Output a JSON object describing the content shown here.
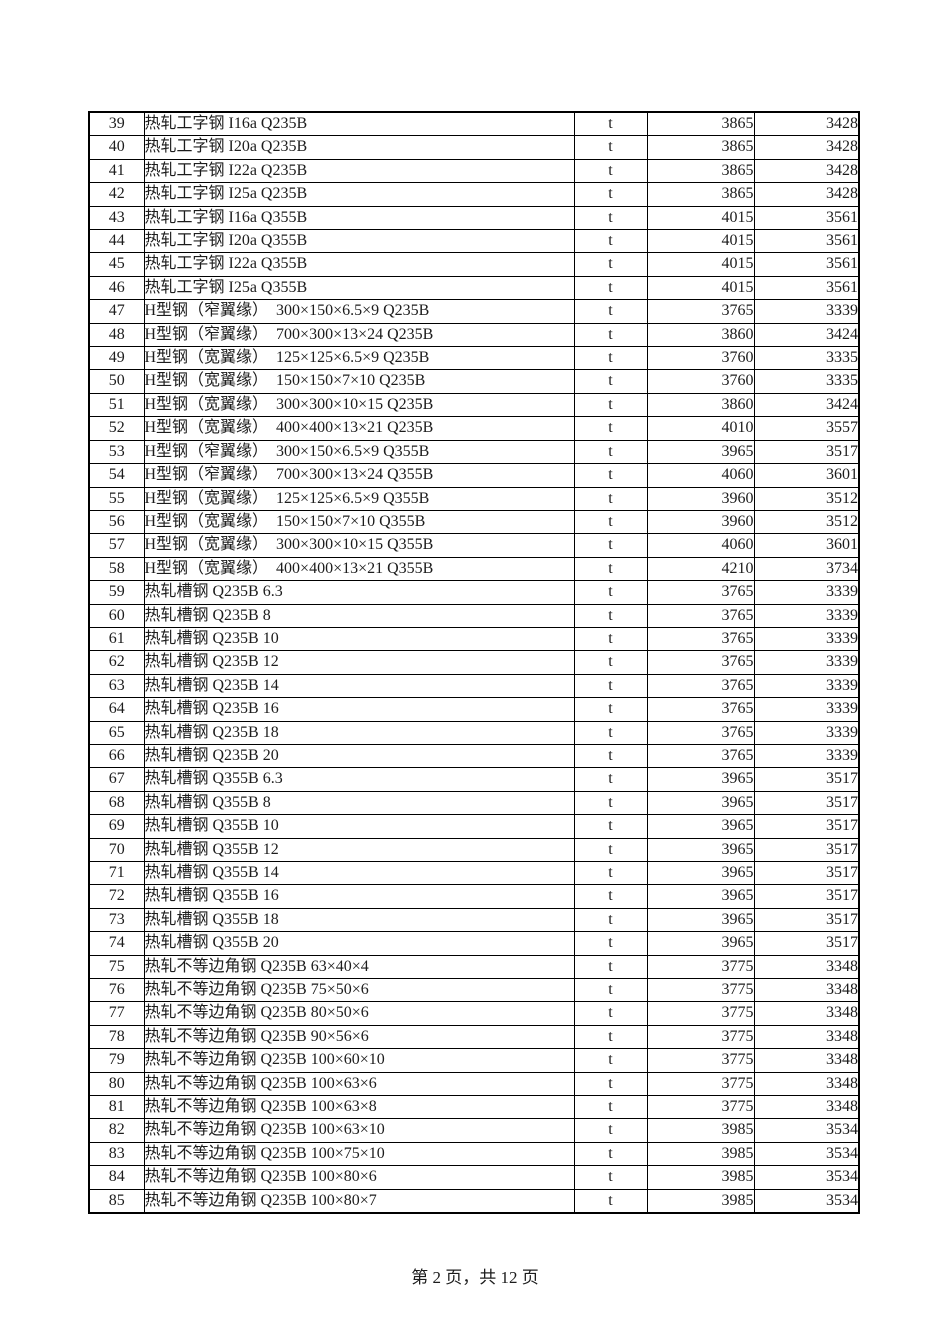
{
  "page": {
    "footer": "第 2 页，共 12 页"
  },
  "table": {
    "fields": [
      "no",
      "description",
      "unit",
      "price",
      "base_price"
    ],
    "rows": [
      [
        "39",
        "热轧工字钢 I16a Q235B",
        "t",
        "3865",
        "3428"
      ],
      [
        "40",
        "热轧工字钢  I20a Q235B",
        "t",
        "3865",
        "3428"
      ],
      [
        "41",
        "热轧工字钢  I22a Q235B",
        "t",
        "3865",
        "3428"
      ],
      [
        "42",
        "热轧工字钢  I25a Q235B",
        "t",
        "3865",
        "3428"
      ],
      [
        "43",
        "热轧工字钢  I16a Q355B",
        "t",
        "4015",
        "3561"
      ],
      [
        "44",
        "热轧工字钢  I20a Q355B",
        "t",
        "4015",
        "3561"
      ],
      [
        "45",
        "热轧工字钢  I22a Q355B",
        "t",
        "4015",
        "3561"
      ],
      [
        "46",
        "热轧工字钢  I25a Q355B",
        "t",
        "4015",
        "3561"
      ],
      [
        "47",
        "H型钢（窄翼缘）　300×150×6.5×9 Q235B",
        "t",
        "3765",
        "3339"
      ],
      [
        "48",
        "H型钢（窄翼缘）　700×300×13×24 Q235B",
        "t",
        "3860",
        "3424"
      ],
      [
        "49",
        "H型钢（宽翼缘）　125×125×6.5×9 Q235B",
        "t",
        "3760",
        "3335"
      ],
      [
        "50",
        "H型钢（宽翼缘）　150×150×7×10 Q235B",
        "t",
        "3760",
        "3335"
      ],
      [
        "51",
        "H型钢（宽翼缘）　300×300×10×15 Q235B",
        "t",
        "3860",
        "3424"
      ],
      [
        "52",
        "H型钢（宽翼缘）　400×400×13×21 Q235B",
        "t",
        "4010",
        "3557"
      ],
      [
        "53",
        "H型钢（窄翼缘）　300×150×6.5×9 Q355B",
        "t",
        "3965",
        "3517"
      ],
      [
        "54",
        "H型钢（窄翼缘）　700×300×13×24 Q355B",
        "t",
        "4060",
        "3601"
      ],
      [
        "55",
        "H型钢（宽翼缘）　125×125×6.5×9 Q355B",
        "t",
        "3960",
        "3512"
      ],
      [
        "56",
        "H型钢（宽翼缘）　150×150×7×10 Q355B",
        "t",
        "3960",
        "3512"
      ],
      [
        "57",
        "H型钢（宽翼缘）　300×300×10×15 Q355B",
        "t",
        "4060",
        "3601"
      ],
      [
        "58",
        "H型钢（宽翼缘）　400×400×13×21 Q355B",
        "t",
        "4210",
        "3734"
      ],
      [
        "59",
        "热轧槽钢  Q235B 6.3",
        "t",
        "3765",
        "3339"
      ],
      [
        "60",
        "热轧槽钢  Q235B 8",
        "t",
        "3765",
        "3339"
      ],
      [
        "61",
        "热轧槽钢  Q235B 10",
        "t",
        "3765",
        "3339"
      ],
      [
        "62",
        "热轧槽钢  Q235B 12",
        "t",
        "3765",
        "3339"
      ],
      [
        "63",
        "热轧槽钢  Q235B 14",
        "t",
        "3765",
        "3339"
      ],
      [
        "64",
        "热轧槽钢  Q235B 16",
        "t",
        "3765",
        "3339"
      ],
      [
        "65",
        "热轧槽钢  Q235B 18",
        "t",
        "3765",
        "3339"
      ],
      [
        "66",
        "热轧槽钢  Q235B 20",
        "t",
        "3765",
        "3339"
      ],
      [
        "67",
        "热轧槽钢  Q355B 6.3",
        "t",
        "3965",
        "3517"
      ],
      [
        "68",
        "热轧槽钢  Q355B 8",
        "t",
        "3965",
        "3517"
      ],
      [
        "69",
        "热轧槽钢  Q355B 10",
        "t",
        "3965",
        "3517"
      ],
      [
        "70",
        "热轧槽钢  Q355B 12",
        "t",
        "3965",
        "3517"
      ],
      [
        "71",
        "热轧槽钢  Q355B 14",
        "t",
        "3965",
        "3517"
      ],
      [
        "72",
        "热轧槽钢  Q355B 16",
        "t",
        "3965",
        "3517"
      ],
      [
        "73",
        "热轧槽钢  Q355B 18",
        "t",
        "3965",
        "3517"
      ],
      [
        "74",
        "热轧槽钢  Q355B 20",
        "t",
        "3965",
        "3517"
      ],
      [
        "75",
        "热轧不等边角钢  Q235B 63×40×4",
        "t",
        "3775",
        "3348"
      ],
      [
        "76",
        "热轧不等边角钢  Q235B 75×50×6",
        "t",
        "3775",
        "3348"
      ],
      [
        "77",
        "热轧不等边角钢  Q235B 80×50×6",
        "t",
        "3775",
        "3348"
      ],
      [
        "78",
        "热轧不等边角钢  Q235B 90×56×6",
        "t",
        "3775",
        "3348"
      ],
      [
        "79",
        "热轧不等边角钢  Q235B 100×60×10",
        "t",
        "3775",
        "3348"
      ],
      [
        "80",
        "热轧不等边角钢  Q235B 100×63×6",
        "t",
        "3775",
        "3348"
      ],
      [
        "81",
        "热轧不等边角钢  Q235B 100×63×8",
        "t",
        "3775",
        "3348"
      ],
      [
        "82",
        "热轧不等边角钢  Q235B 100×63×10",
        "t",
        "3985",
        "3534"
      ],
      [
        "83",
        "热轧不等边角钢  Q235B 100×75×10",
        "t",
        "3985",
        "3534"
      ],
      [
        "84",
        "热轧不等边角钢  Q235B 100×80×6",
        "t",
        "3985",
        "3534"
      ],
      [
        "85",
        "热轧不等边角钢  Q235B 100×80×7",
        "t",
        "3985",
        "3534"
      ]
    ]
  }
}
